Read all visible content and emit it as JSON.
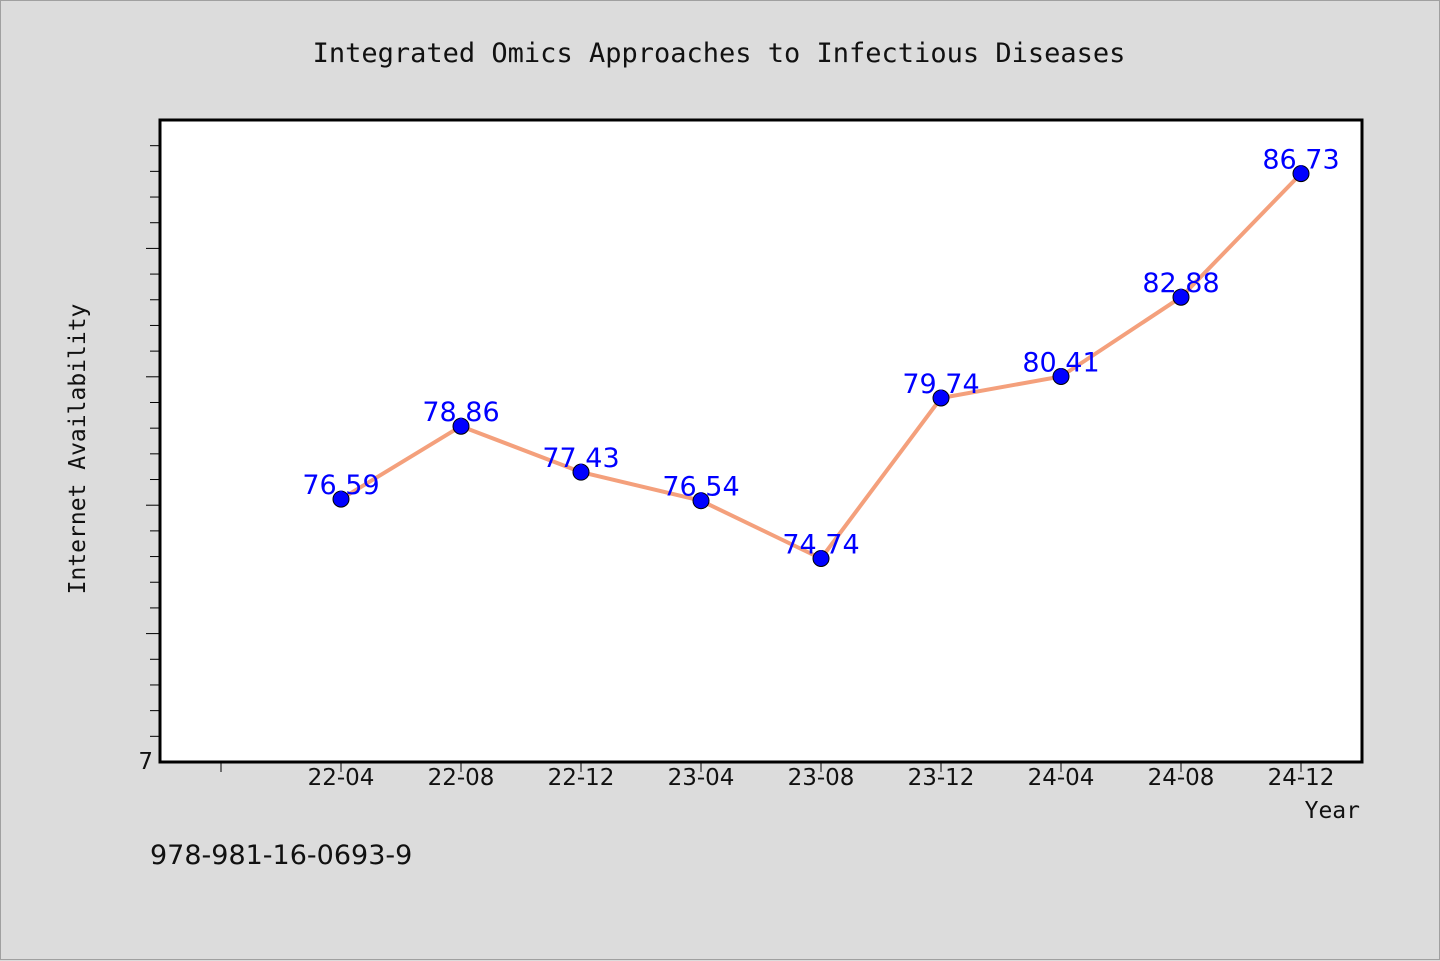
{
  "chart_data": {
    "type": "line",
    "title": "Integrated Omics Approaches to Infectious Diseases",
    "xlabel": "Year",
    "ylabel": "Internet Availability",
    "categories": [
      "22-04",
      "22-08",
      "22-12",
      "23-04",
      "23-08",
      "23-12",
      "24-04",
      "24-08",
      "24-12"
    ],
    "series": [
      {
        "values": [
          76.59,
          78.86,
          77.43,
          76.54,
          74.74,
          79.74,
          80.41,
          82.88,
          86.73
        ]
      }
    ],
    "data_labels": [
      "76.59",
      "78.86",
      "77.43",
      "76.54",
      "74.74",
      "79.74",
      "80.41",
      "82.88",
      "86.73"
    ],
    "y_tick_label": "7",
    "ylim": [
      68.4,
      88.4
    ],
    "grid": false,
    "legend": "none",
    "colors": {
      "line": "#f4a07c",
      "marker": "#0000ff",
      "label": "#0000ff",
      "background": "#dcdcdc",
      "plot_bg": "#ffffff"
    }
  },
  "footer": {
    "isbn": "978-981-16-0693-9"
  }
}
